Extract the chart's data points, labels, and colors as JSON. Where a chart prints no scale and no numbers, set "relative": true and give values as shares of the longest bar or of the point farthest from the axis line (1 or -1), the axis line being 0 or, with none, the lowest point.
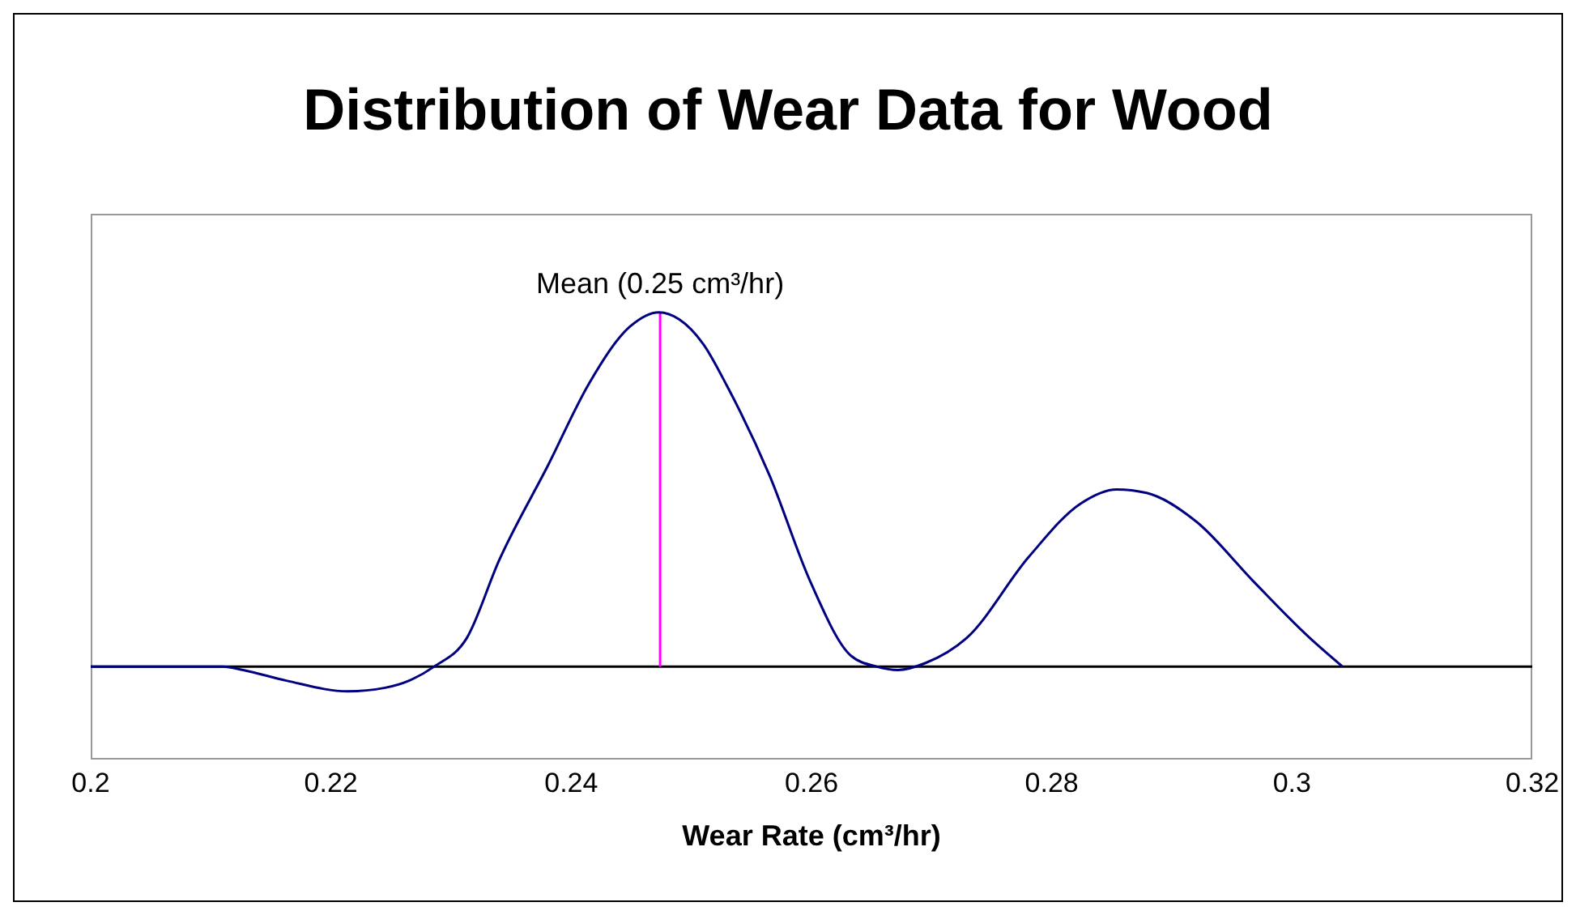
{
  "chart_data": {
    "type": "line",
    "title": "Distribution of Wear Data for Wood",
    "xlabel": "Wear Rate (cm³/hr)",
    "relative": true,
    "x": [
      0.2,
      0.211,
      0.2127,
      0.2163,
      0.2214,
      0.2245,
      0.2265,
      0.2286,
      0.2313,
      0.234,
      0.2381,
      0.2415,
      0.2449,
      0.2473,
      0.249,
      0.251,
      0.253,
      0.2565,
      0.2599,
      0.2633,
      0.2654,
      0.2672,
      0.2695,
      0.2729,
      0.2781,
      0.2824,
      0.2854,
      0.2879,
      0.292,
      0.2968,
      0.3015,
      0.3042
    ],
    "series": [
      {
        "color": "#000080",
        "values": [
          0,
          0,
          -0.01,
          -0.04,
          -0.07,
          -0.06,
          -0.04,
          0,
          0.08,
          0.3,
          0.57,
          0.8,
          0.96,
          1,
          0.98,
          0.91,
          0.79,
          0.54,
          0.24,
          0.03,
          0,
          -0.01,
          0.01,
          0.08,
          0.31,
          0.46,
          0.5,
          0.49,
          0.41,
          0.24,
          0.08,
          0
        ]
      }
    ],
    "xlim": [
      0.2,
      0.32
    ],
    "xticks": [
      0.2,
      0.22,
      0.24,
      0.26,
      0.28,
      0.3,
      0.32
    ],
    "ref_lines": [
      {
        "axis": "x",
        "value": 0.2474,
        "label": "Mean (0.25 cm³/hr)",
        "color": "#ff00ff"
      }
    ],
    "grid": false,
    "legend": false,
    "marker": "none",
    "line_style": "solid"
  }
}
